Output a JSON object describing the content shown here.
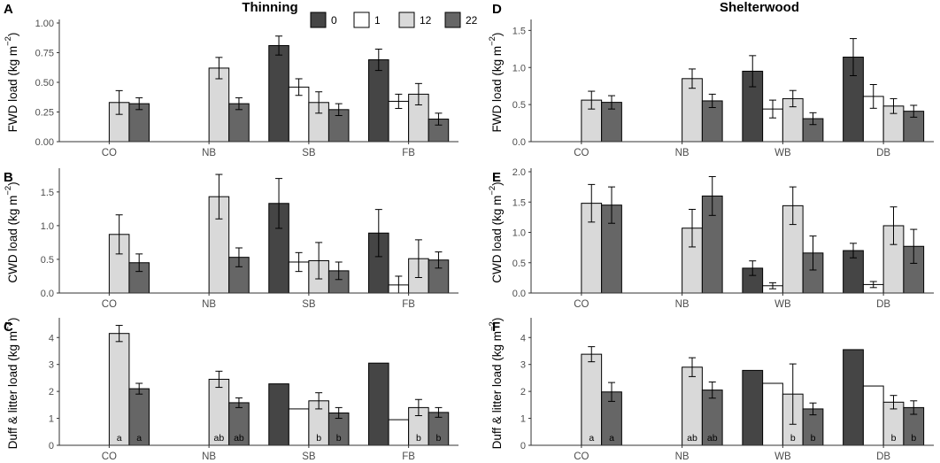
{
  "figure": {
    "column_titles": [
      "Thinning",
      "Shelterwood"
    ],
    "legend": {
      "items": [
        "0",
        "1",
        "12",
        "22"
      ],
      "colors": [
        "#454545",
        "#ffffff",
        "#d9d9d9",
        "#666666"
      ]
    }
  },
  "chart_data": [
    {
      "id": "A",
      "type": "bar",
      "letter": "A",
      "column": 0,
      "row": 0,
      "title": "Thinning",
      "ylabel": "FWD load (kg m−2)",
      "categories": [
        "CO",
        "NB",
        "SB",
        "FB"
      ],
      "ylim": [
        0,
        1.0
      ],
      "yticks": [
        0,
        0.25,
        0.5,
        0.75,
        1.0
      ],
      "ytick_labels": [
        "0.00",
        "0.25",
        "0.50",
        "0.75",
        "1.00"
      ],
      "series": [
        {
          "name": "0",
          "values": [
            null,
            null,
            0.81,
            0.69
          ],
          "err": [
            null,
            null,
            0.08,
            0.09
          ]
        },
        {
          "name": "1",
          "values": [
            null,
            null,
            0.46,
            0.34
          ],
          "err": [
            null,
            null,
            0.07,
            0.06
          ]
        },
        {
          "name": "12",
          "values": [
            0.33,
            0.62,
            0.33,
            0.4
          ],
          "err": [
            0.1,
            0.09,
            0.09,
            0.09
          ]
        },
        {
          "name": "22",
          "values": [
            0.32,
            0.32,
            0.27,
            0.19
          ],
          "err": [
            0.05,
            0.05,
            0.05,
            0.05
          ]
        }
      ]
    },
    {
      "id": "B",
      "type": "bar",
      "letter": "B",
      "column": 0,
      "row": 1,
      "ylabel": "CWD load (kg m−2)",
      "categories": [
        "CO",
        "NB",
        "SB",
        "FB"
      ],
      "ylim": [
        0,
        1.8
      ],
      "yticks": [
        0,
        0.5,
        1.0,
        1.5
      ],
      "ytick_labels": [
        "0.0",
        "0.5",
        "1.0",
        "1.5"
      ],
      "series": [
        {
          "name": "0",
          "values": [
            null,
            null,
            1.33,
            0.89
          ],
          "err": [
            null,
            null,
            0.37,
            0.35
          ]
        },
        {
          "name": "1",
          "values": [
            null,
            null,
            0.46,
            0.12
          ],
          "err": [
            null,
            null,
            0.14,
            0.13
          ]
        },
        {
          "name": "12",
          "values": [
            0.87,
            1.43,
            0.48,
            0.51
          ],
          "err": [
            0.29,
            0.33,
            0.27,
            0.28
          ]
        },
        {
          "name": "22",
          "values": [
            0.45,
            0.53,
            0.33,
            0.49
          ],
          "err": [
            0.13,
            0.14,
            0.13,
            0.12
          ]
        }
      ]
    },
    {
      "id": "C",
      "type": "bar",
      "letter": "C",
      "column": 0,
      "row": 2,
      "ylabel": "Duff & litter load (kg m−2)",
      "categories": [
        "CO",
        "NB",
        "SB",
        "FB"
      ],
      "ylim": [
        0,
        4.6
      ],
      "yticks": [
        0,
        1,
        2,
        3,
        4
      ],
      "ytick_labels": [
        "0",
        "1",
        "2",
        "3",
        "4"
      ],
      "series": [
        {
          "name": "0",
          "values": [
            null,
            null,
            2.28,
            3.05
          ],
          "err": [
            null,
            null,
            null,
            null
          ]
        },
        {
          "name": "1",
          "values": [
            null,
            null,
            1.35,
            0.95
          ],
          "err": [
            null,
            null,
            null,
            null
          ]
        },
        {
          "name": "12",
          "values": [
            4.15,
            2.45,
            1.65,
            1.4
          ],
          "err": [
            0.3,
            0.3,
            0.3,
            0.3
          ]
        },
        {
          "name": "22",
          "values": [
            2.1,
            1.58,
            1.2,
            1.22
          ],
          "err": [
            0.2,
            0.18,
            0.2,
            0.18
          ]
        }
      ],
      "significance": {
        "12": [
          "a",
          "ab",
          "b",
          "b"
        ],
        "22": [
          "a",
          "ab",
          "b",
          "b"
        ]
      }
    },
    {
      "id": "D",
      "type": "bar",
      "letter": "D",
      "column": 1,
      "row": 0,
      "title": "Shelterwood",
      "ylabel": "FWD load (kg m−2)",
      "categories": [
        "CO",
        "NB",
        "WB",
        "DB"
      ],
      "ylim": [
        0,
        1.6
      ],
      "yticks": [
        0,
        0.5,
        1.0,
        1.5
      ],
      "ytick_labels": [
        "0.0",
        "0.5",
        "1.0",
        "1.5"
      ],
      "series": [
        {
          "name": "0",
          "values": [
            null,
            null,
            0.95,
            1.14
          ],
          "err": [
            null,
            null,
            0.21,
            0.25
          ]
        },
        {
          "name": "1",
          "values": [
            null,
            null,
            0.44,
            0.61
          ],
          "err": [
            null,
            null,
            0.12,
            0.16
          ]
        },
        {
          "name": "12",
          "values": [
            0.56,
            0.85,
            0.58,
            0.48
          ],
          "err": [
            0.12,
            0.13,
            0.11,
            0.1
          ]
        },
        {
          "name": "22",
          "values": [
            0.53,
            0.55,
            0.31,
            0.41
          ],
          "err": [
            0.09,
            0.09,
            0.08,
            0.08
          ]
        }
      ]
    },
    {
      "id": "E",
      "type": "bar",
      "letter": "E",
      "column": 1,
      "row": 1,
      "ylabel": "CWD load (kg m−2)",
      "categories": [
        "CO",
        "NB",
        "WB",
        "DB"
      ],
      "ylim": [
        0,
        2.0
      ],
      "yticks": [
        0,
        0.5,
        1.0,
        1.5,
        2.0
      ],
      "ytick_labels": [
        "0.0",
        "0.5",
        "1.0",
        "1.5",
        "2.0"
      ],
      "series": [
        {
          "name": "0",
          "values": [
            null,
            null,
            0.41,
            0.7
          ],
          "err": [
            null,
            null,
            0.12,
            0.12
          ]
        },
        {
          "name": "1",
          "values": [
            null,
            null,
            0.12,
            0.14
          ],
          "err": [
            null,
            null,
            0.05,
            0.05
          ]
        },
        {
          "name": "12",
          "values": [
            1.48,
            1.07,
            1.44,
            1.11
          ],
          "err": [
            0.31,
            0.31,
            0.31,
            0.31
          ]
        },
        {
          "name": "22",
          "values": [
            1.45,
            1.6,
            0.66,
            0.77
          ],
          "err": [
            0.3,
            0.32,
            0.28,
            0.28
          ]
        }
      ]
    },
    {
      "id": "F",
      "type": "bar",
      "letter": "F",
      "column": 1,
      "row": 2,
      "ylabel": "Duff & litter load (kg m−2)",
      "categories": [
        "CO",
        "NB",
        "WB",
        "DB"
      ],
      "ylim": [
        0,
        4.6
      ],
      "yticks": [
        0,
        1,
        2,
        3,
        4
      ],
      "ytick_labels": [
        "0",
        "1",
        "2",
        "3",
        "4"
      ],
      "series": [
        {
          "name": "0",
          "values": [
            null,
            null,
            2.78,
            3.55
          ],
          "err": [
            null,
            null,
            null,
            null
          ]
        },
        {
          "name": "1",
          "values": [
            null,
            null,
            2.3,
            2.2
          ],
          "err": [
            null,
            null,
            null,
            null
          ]
        },
        {
          "name": "12",
          "values": [
            3.38,
            2.9,
            1.9,
            1.6
          ],
          "err": [
            0.28,
            0.35,
            1.12,
            0.25
          ]
        },
        {
          "name": "22",
          "values": [
            1.98,
            2.05,
            1.35,
            1.4
          ],
          "err": [
            0.35,
            0.3,
            0.22,
            0.25
          ]
        }
      ],
      "significance": {
        "12": [
          "a",
          "ab",
          "b",
          "b"
        ],
        "22": [
          "a",
          "ab",
          "b",
          "b"
        ]
      }
    }
  ]
}
